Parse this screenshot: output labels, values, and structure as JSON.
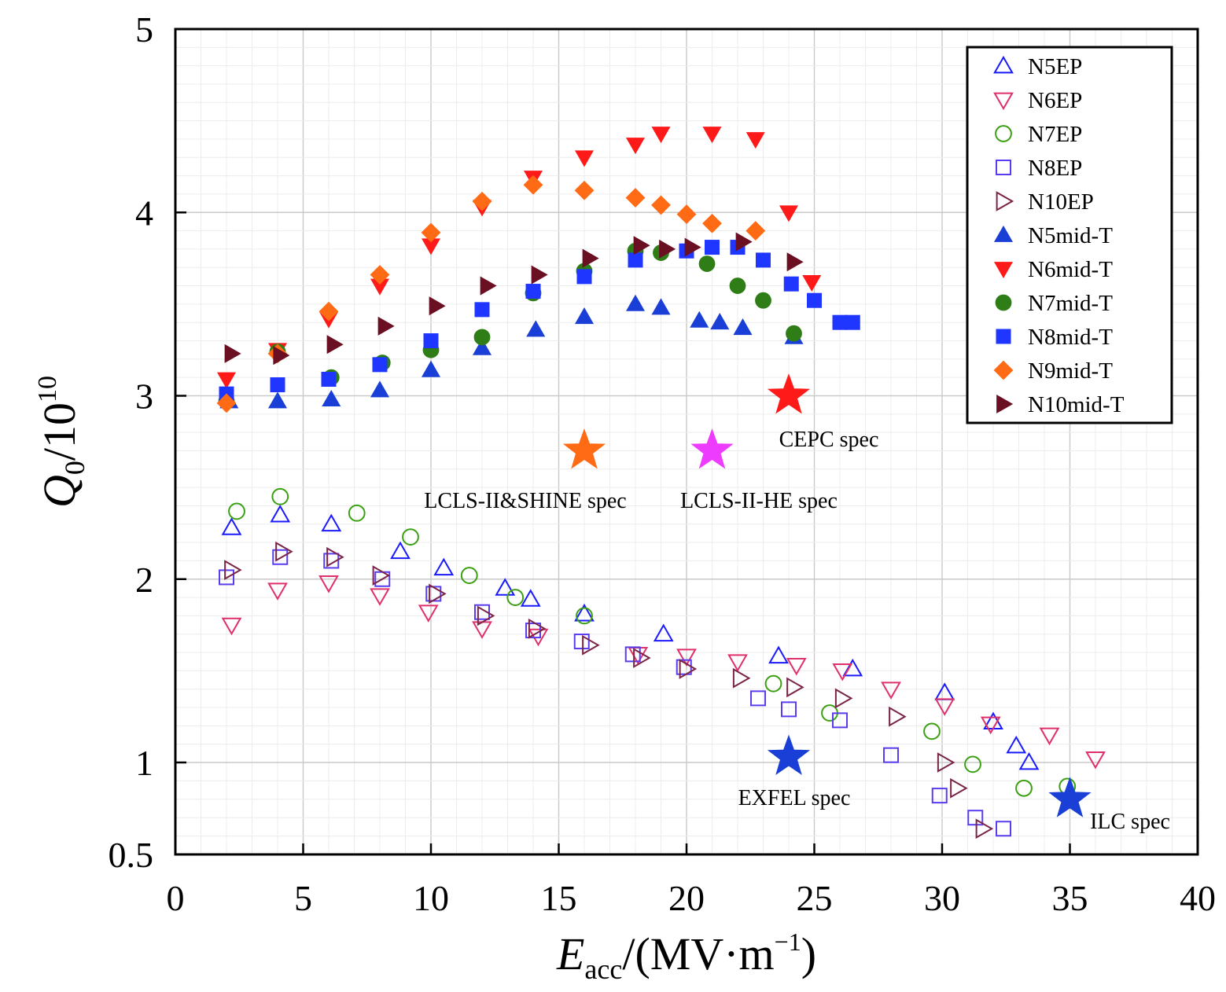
{
  "chart_data": {
    "type": "scatter",
    "xlabel_main": "E",
    "xlabel_sub": "acc",
    "xlabel_rest": "/(MV·m",
    "xlabel_sup": "−1",
    "xlabel_close": ")",
    "ylabel_main": "Q",
    "ylabel_sub": "0",
    "ylabel_rest": "/10",
    "ylabel_sup": "10",
    "xlim": [
      0,
      40
    ],
    "ylim": [
      0.5,
      5
    ],
    "x_ticks": [
      "0",
      "5",
      "10",
      "15",
      "20",
      "25",
      "30",
      "35",
      "40"
    ],
    "y_ticks": [
      "0.5",
      "1",
      "2",
      "3",
      "4",
      "5"
    ],
    "grid": true,
    "legend_position": "top-right",
    "series": [
      {
        "name": "N5EP",
        "marker": "triangle-up",
        "filled": false,
        "color": "#1a1aff",
        "points": [
          [
            2.2,
            2.28
          ],
          [
            4.1,
            2.35
          ],
          [
            6.1,
            2.3
          ],
          [
            8.8,
            2.15
          ],
          [
            10.5,
            2.06
          ],
          [
            12.9,
            1.95
          ],
          [
            13.9,
            1.89
          ],
          [
            16.0,
            1.81
          ],
          [
            19.1,
            1.7
          ],
          [
            23.6,
            1.58
          ],
          [
            26.5,
            1.51
          ],
          [
            30.1,
            1.38
          ],
          [
            32.0,
            1.22
          ],
          [
            32.9,
            1.09
          ],
          [
            33.4,
            1.0
          ]
        ]
      },
      {
        "name": "N6EP",
        "marker": "triangle-down",
        "filled": false,
        "color": "#e0306a",
        "points": [
          [
            2.2,
            1.75
          ],
          [
            4.0,
            1.94
          ],
          [
            6.0,
            1.98
          ],
          [
            8.0,
            1.91
          ],
          [
            9.9,
            1.82
          ],
          [
            12.0,
            1.73
          ],
          [
            14.2,
            1.69
          ],
          [
            18.1,
            1.59
          ],
          [
            20.0,
            1.58
          ],
          [
            22.0,
            1.55
          ],
          [
            24.3,
            1.53
          ],
          [
            26.1,
            1.5
          ],
          [
            28.0,
            1.4
          ],
          [
            30.1,
            1.31
          ],
          [
            31.9,
            1.21
          ],
          [
            34.2,
            1.15
          ],
          [
            36.0,
            1.02
          ]
        ]
      },
      {
        "name": "N7EP",
        "marker": "circle",
        "filled": false,
        "color": "#3aa012",
        "points": [
          [
            2.4,
            2.37
          ],
          [
            4.1,
            2.45
          ],
          [
            7.1,
            2.36
          ],
          [
            9.2,
            2.23
          ],
          [
            11.5,
            2.02
          ],
          [
            13.3,
            1.9
          ],
          [
            16.0,
            1.8
          ],
          [
            23.4,
            1.43
          ],
          [
            25.6,
            1.27
          ],
          [
            29.6,
            1.17
          ],
          [
            31.2,
            0.99
          ],
          [
            33.2,
            0.86
          ],
          [
            34.9,
            0.87
          ]
        ]
      },
      {
        "name": "N8EP",
        "marker": "square",
        "filled": false,
        "color": "#5a3cf0",
        "points": [
          [
            2.0,
            2.01
          ],
          [
            4.1,
            2.12
          ],
          [
            6.1,
            2.1
          ],
          [
            8.1,
            2.0
          ],
          [
            10.1,
            1.92
          ],
          [
            12.0,
            1.82
          ],
          [
            14.0,
            1.72
          ],
          [
            15.9,
            1.66
          ],
          [
            17.9,
            1.59
          ],
          [
            19.9,
            1.52
          ],
          [
            22.8,
            1.35
          ],
          [
            24.0,
            1.29
          ],
          [
            26.0,
            1.23
          ],
          [
            28.0,
            1.04
          ],
          [
            29.9,
            0.82
          ],
          [
            31.3,
            0.7
          ],
          [
            32.4,
            0.64
          ]
        ]
      },
      {
        "name": "N10EP",
        "marker": "triangle-right",
        "filled": false,
        "color": "#7a2448",
        "points": [
          [
            2.2,
            2.05
          ],
          [
            4.2,
            2.15
          ],
          [
            6.2,
            2.12
          ],
          [
            8.0,
            2.02
          ],
          [
            10.2,
            1.92
          ],
          [
            12.1,
            1.8
          ],
          [
            14.1,
            1.73
          ],
          [
            16.2,
            1.64
          ],
          [
            18.2,
            1.57
          ],
          [
            20.0,
            1.51
          ],
          [
            22.1,
            1.46
          ],
          [
            24.2,
            1.41
          ],
          [
            26.1,
            1.35
          ],
          [
            28.2,
            1.25
          ],
          [
            30.1,
            1.0
          ],
          [
            30.6,
            0.86
          ],
          [
            31.6,
            0.64
          ]
        ]
      },
      {
        "name": "N5mid-T",
        "marker": "triangle-up",
        "filled": true,
        "color": "#1a3fd6",
        "points": [
          [
            2.1,
            2.97
          ],
          [
            4.0,
            2.97
          ],
          [
            6.1,
            2.98
          ],
          [
            8.0,
            3.03
          ],
          [
            10.0,
            3.14
          ],
          [
            12.0,
            3.26
          ],
          [
            14.1,
            3.36
          ],
          [
            16.0,
            3.43
          ],
          [
            18.0,
            3.5
          ],
          [
            19.0,
            3.48
          ],
          [
            20.5,
            3.41
          ],
          [
            21.3,
            3.4
          ],
          [
            22.2,
            3.37
          ],
          [
            24.2,
            3.32
          ]
        ]
      },
      {
        "name": "N6mid-T",
        "marker": "triangle-down",
        "filled": true,
        "color": "#ff1a1a",
        "points": [
          [
            2.0,
            3.09
          ],
          [
            4.0,
            3.25
          ],
          [
            6.0,
            3.42
          ],
          [
            8.0,
            3.6
          ],
          [
            10.0,
            3.82
          ],
          [
            12.0,
            4.03
          ],
          [
            14.0,
            4.19
          ],
          [
            16.0,
            4.3
          ],
          [
            18.0,
            4.37
          ],
          [
            19.0,
            4.43
          ],
          [
            21.0,
            4.43
          ],
          [
            22.7,
            4.4
          ],
          [
            24.0,
            4.0
          ],
          [
            24.9,
            3.62
          ]
        ]
      },
      {
        "name": "N7mid-T",
        "marker": "circle",
        "filled": true,
        "color": "#2e7d16",
        "points": [
          [
            2.0,
            2.97
          ],
          [
            4.0,
            3.24
          ],
          [
            6.1,
            3.1
          ],
          [
            8.1,
            3.18
          ],
          [
            10.0,
            3.25
          ],
          [
            12.0,
            3.32
          ],
          [
            14.0,
            3.56
          ],
          [
            16.0,
            3.68
          ],
          [
            18.0,
            3.79
          ],
          [
            19.0,
            3.78
          ],
          [
            20.8,
            3.72
          ],
          [
            22.0,
            3.6
          ],
          [
            23.0,
            3.52
          ],
          [
            24.2,
            3.34
          ]
        ]
      },
      {
        "name": "N8mid-T",
        "marker": "square",
        "filled": true,
        "color": "#1e36ff",
        "points": [
          [
            2.0,
            3.01
          ],
          [
            4.0,
            3.06
          ],
          [
            6.0,
            3.09
          ],
          [
            8.0,
            3.17
          ],
          [
            10.0,
            3.3
          ],
          [
            12.0,
            3.47
          ],
          [
            14.0,
            3.57
          ],
          [
            16.0,
            3.65
          ],
          [
            18.0,
            3.74
          ],
          [
            20.0,
            3.79
          ],
          [
            21.0,
            3.81
          ],
          [
            22.0,
            3.81
          ],
          [
            23.0,
            3.74
          ],
          [
            24.1,
            3.61
          ],
          [
            25.0,
            3.52
          ],
          [
            26.0,
            3.4
          ],
          [
            26.5,
            3.4
          ]
        ]
      },
      {
        "name": "N9mid-T",
        "marker": "diamond",
        "filled": true,
        "color": "#ff6a14",
        "points": [
          [
            2.0,
            2.96
          ],
          [
            4.0,
            3.23
          ],
          [
            6.0,
            3.46
          ],
          [
            8.0,
            3.66
          ],
          [
            10.0,
            3.89
          ],
          [
            12.0,
            4.06
          ],
          [
            14.0,
            4.15
          ],
          [
            16.0,
            4.12
          ],
          [
            18.0,
            4.08
          ],
          [
            19.0,
            4.04
          ],
          [
            20.0,
            3.99
          ],
          [
            21.0,
            3.94
          ],
          [
            22.7,
            3.9
          ]
        ]
      },
      {
        "name": "N10mid-T",
        "marker": "triangle-right",
        "filled": true,
        "color": "#6b0f22",
        "points": [
          [
            2.2,
            3.23
          ],
          [
            4.1,
            3.22
          ],
          [
            6.2,
            3.28
          ],
          [
            8.2,
            3.38
          ],
          [
            10.2,
            3.49
          ],
          [
            12.2,
            3.6
          ],
          [
            14.2,
            3.66
          ],
          [
            16.2,
            3.75
          ],
          [
            18.2,
            3.82
          ],
          [
            19.2,
            3.8
          ],
          [
            20.2,
            3.81
          ],
          [
            22.2,
            3.84
          ],
          [
            24.2,
            3.73
          ]
        ]
      }
    ],
    "specs": [
      {
        "label": "CEPC spec",
        "x": 24.0,
        "y": 3.0,
        "color": "#ff1a1a"
      },
      {
        "label": "LCLS-II&SHINE spec",
        "x": 16.0,
        "y": 2.7,
        "color": "#ff6a14"
      },
      {
        "label": "LCLS-II-HE spec",
        "x": 21.0,
        "y": 2.7,
        "color": "#ee3cff"
      },
      {
        "label": "EXFEL spec",
        "x": 24.0,
        "y": 1.03,
        "color": "#1a3fd6"
      },
      {
        "label": "ILC spec",
        "x": 35.0,
        "y": 0.8,
        "color": "#1a3fd6"
      }
    ]
  }
}
